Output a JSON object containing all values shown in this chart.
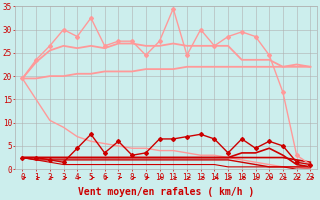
{
  "background_color": "#cceeed",
  "grid_color": "#b0b0b0",
  "xlabel": "Vent moyen/en rafales ( km/h )",
  "xlabel_color": "#cc0000",
  "xlabel_fontsize": 7,
  "tick_color": "#cc0000",
  "xlim_idx": [
    0,
    21
  ],
  "ylim": [
    0,
    35
  ],
  "yticks": [
    0,
    5,
    10,
    15,
    20,
    25,
    30,
    35
  ],
  "xtick_labels": [
    "0",
    "1",
    "2",
    "3",
    "4",
    "5",
    "6",
    "7",
    "8",
    "9",
    "10",
    "11",
    "12",
    "13",
    "14",
    "15",
    "18",
    "19",
    "20",
    "21",
    "22",
    "23"
  ],
  "series": [
    {
      "y": [
        19.5,
        23.5,
        26.5,
        30.0,
        28.5,
        32.5,
        26.5,
        27.5,
        27.5,
        24.5,
        27.5,
        34.5,
        24.5,
        30.0,
        26.5,
        28.5,
        29.5,
        28.5,
        24.5,
        16.5,
        3.0,
        1.0
      ],
      "color": "#ff9999",
      "lw": 1.0,
      "marker": "D",
      "markersize": 2.0
    },
    {
      "y": [
        19.5,
        23.0,
        25.5,
        26.5,
        26.0,
        26.5,
        26.0,
        27.0,
        27.0,
        26.5,
        26.5,
        27.0,
        26.5,
        26.5,
        26.5,
        26.5,
        23.5,
        23.5,
        23.5,
        22.0,
        22.5,
        22.0
      ],
      "color": "#ff9999",
      "lw": 1.3,
      "marker": null,
      "markersize": 0
    },
    {
      "y": [
        19.5,
        19.5,
        20.0,
        20.0,
        20.5,
        20.5,
        21.0,
        21.0,
        21.0,
        21.5,
        21.5,
        21.5,
        22.0,
        22.0,
        22.0,
        22.0,
        22.0,
        22.0,
        22.0,
        22.0,
        22.0,
        22.0
      ],
      "color": "#ff9999",
      "lw": 1.3,
      "marker": null,
      "markersize": 0
    },
    {
      "y": [
        19.5,
        15.0,
        10.5,
        9.0,
        7.0,
        6.0,
        5.5,
        5.0,
        4.5,
        4.5,
        4.0,
        4.0,
        3.5,
        3.0,
        3.0,
        2.5,
        2.0,
        1.5,
        1.0,
        0.5,
        0.5,
        0.0
      ],
      "color": "#ff9999",
      "lw": 1.0,
      "marker": null,
      "markersize": 0
    },
    {
      "y": [
        2.5,
        2.5,
        2.0,
        1.5,
        4.5,
        7.5,
        3.5,
        6.0,
        3.0,
        3.5,
        6.5,
        6.5,
        7.0,
        7.5,
        6.5,
        3.5,
        6.5,
        4.5,
        6.0,
        5.0,
        1.5,
        1.0
      ],
      "color": "#cc0000",
      "lw": 1.0,
      "marker": "D",
      "markersize": 2.0
    },
    {
      "y": [
        2.5,
        2.5,
        2.5,
        2.5,
        2.5,
        2.5,
        2.5,
        2.5,
        2.5,
        2.5,
        2.5,
        2.5,
        2.5,
        2.5,
        2.5,
        2.5,
        3.5,
        3.5,
        4.5,
        3.0,
        1.0,
        0.5
      ],
      "color": "#cc0000",
      "lw": 1.2,
      "marker": null,
      "markersize": 0
    },
    {
      "y": [
        2.5,
        2.5,
        2.5,
        2.5,
        2.5,
        2.5,
        2.5,
        2.5,
        2.5,
        2.5,
        2.5,
        2.5,
        2.5,
        2.5,
        2.5,
        2.5,
        2.5,
        2.5,
        2.5,
        2.5,
        2.0,
        1.5
      ],
      "color": "#cc0000",
      "lw": 1.2,
      "marker": null,
      "markersize": 0
    },
    {
      "y": [
        2.5,
        2.0,
        2.0,
        2.0,
        2.0,
        2.0,
        2.0,
        2.0,
        2.0,
        2.0,
        2.0,
        2.0,
        2.0,
        2.0,
        2.0,
        2.0,
        1.5,
        1.0,
        0.5,
        0.5,
        0.5,
        0.5
      ],
      "color": "#cc0000",
      "lw": 1.0,
      "marker": null,
      "markersize": 0
    },
    {
      "y": [
        2.5,
        2.0,
        1.5,
        1.0,
        1.0,
        1.0,
        1.0,
        1.0,
        1.0,
        1.0,
        1.0,
        1.0,
        1.0,
        1.0,
        1.0,
        0.5,
        0.5,
        0.5,
        0.5,
        0.5,
        0.0,
        0.0
      ],
      "color": "#cc0000",
      "lw": 0.8,
      "marker": null,
      "markersize": 0
    }
  ],
  "arrow_color": "#cc0000"
}
